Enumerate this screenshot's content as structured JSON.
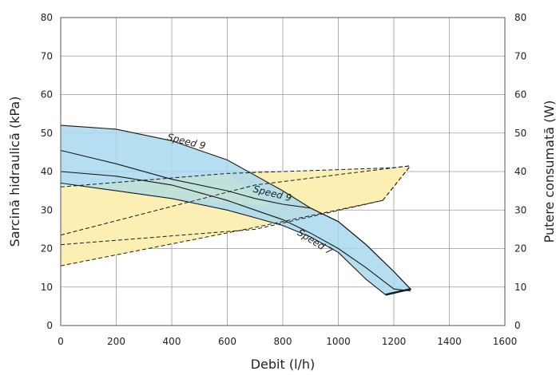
{
  "chart_data": {
    "type": "area",
    "xlabel": "Debit (l/h)",
    "ylabel_left": "Sarcină hidraulică (kPa)",
    "ylabel_right": "Putere consumată (W)",
    "xlim": [
      0,
      1600
    ],
    "ylim_left": [
      0,
      80
    ],
    "ylim_right": [
      0,
      80
    ],
    "x_ticks": [
      "0",
      "200",
      "400",
      "600",
      "800",
      "1000",
      "1200",
      "1400",
      "1600"
    ],
    "y_ticks_left": [
      "0",
      "10",
      "20",
      "30",
      "40",
      "50",
      "60",
      "70",
      "80"
    ],
    "y_ticks_right": [
      "0",
      "10",
      "20",
      "30",
      "40",
      "50",
      "60",
      "70",
      "80"
    ],
    "grid": true,
    "colors": {
      "head_fill": "#a9d8ee",
      "power_fill": "#fcefb4",
      "overlap_fill": "#c9e4cf",
      "line": "#1a1a1a",
      "grid": "#9a9a9a"
    },
    "head_curves": [
      {
        "label": "Speed 9",
        "x": [
          0,
          200,
          400,
          600,
          700,
          800,
          900,
          1000,
          1100,
          1200,
          1260
        ],
        "y": [
          52,
          51,
          48,
          43,
          39,
          35,
          30.5,
          27,
          21,
          14,
          9.5
        ]
      },
      {
        "label": "",
        "x": [
          0,
          200,
          400,
          600,
          700,
          800,
          900,
          1000,
          1100,
          1200,
          1260
        ],
        "y": [
          45.5,
          42,
          38,
          35,
          33,
          31.5,
          30.5,
          27,
          21,
          14,
          9.5
        ]
      },
      {
        "label": "Speed 9",
        "x": [
          0,
          200,
          400,
          600,
          700,
          800,
          900,
          1000,
          1100,
          1200,
          1260
        ],
        "y": [
          40,
          38.8,
          36.5,
          32.5,
          30,
          27.5,
          24,
          20,
          15,
          9.5,
          9
        ]
      },
      {
        "label": "Speed 7",
        "x": [
          0,
          200,
          400,
          600,
          700,
          800,
          900,
          1000,
          1100,
          1170
        ],
        "y": [
          37,
          35,
          33,
          30,
          28,
          26,
          23,
          19,
          12,
          8
        ]
      }
    ],
    "power_curves": [
      {
        "x": [
          0,
          600,
          1200,
          1260
        ],
        "y": [
          36,
          39.5,
          41,
          41.5
        ]
      },
      {
        "x": [
          0,
          700,
          1200,
          1260
        ],
        "y": [
          23.5,
          36.5,
          41,
          41.5
        ]
      },
      {
        "x": [
          0,
          700,
          1160,
          1260
        ],
        "y": [
          21,
          25,
          32.5,
          41.5
        ]
      },
      {
        "x": [
          0,
          700,
          1160
        ],
        "y": [
          15.5,
          25.5,
          32.5
        ]
      }
    ],
    "curve_labels": [
      {
        "text": "Speed 9",
        "x": 450,
        "y": 47,
        "angle": 14
      },
      {
        "text": "Speed 9",
        "x": 760,
        "y": 33.5,
        "angle": 14
      },
      {
        "text": "Speed 7",
        "x": 910,
        "y": 21,
        "angle": 32
      }
    ]
  }
}
